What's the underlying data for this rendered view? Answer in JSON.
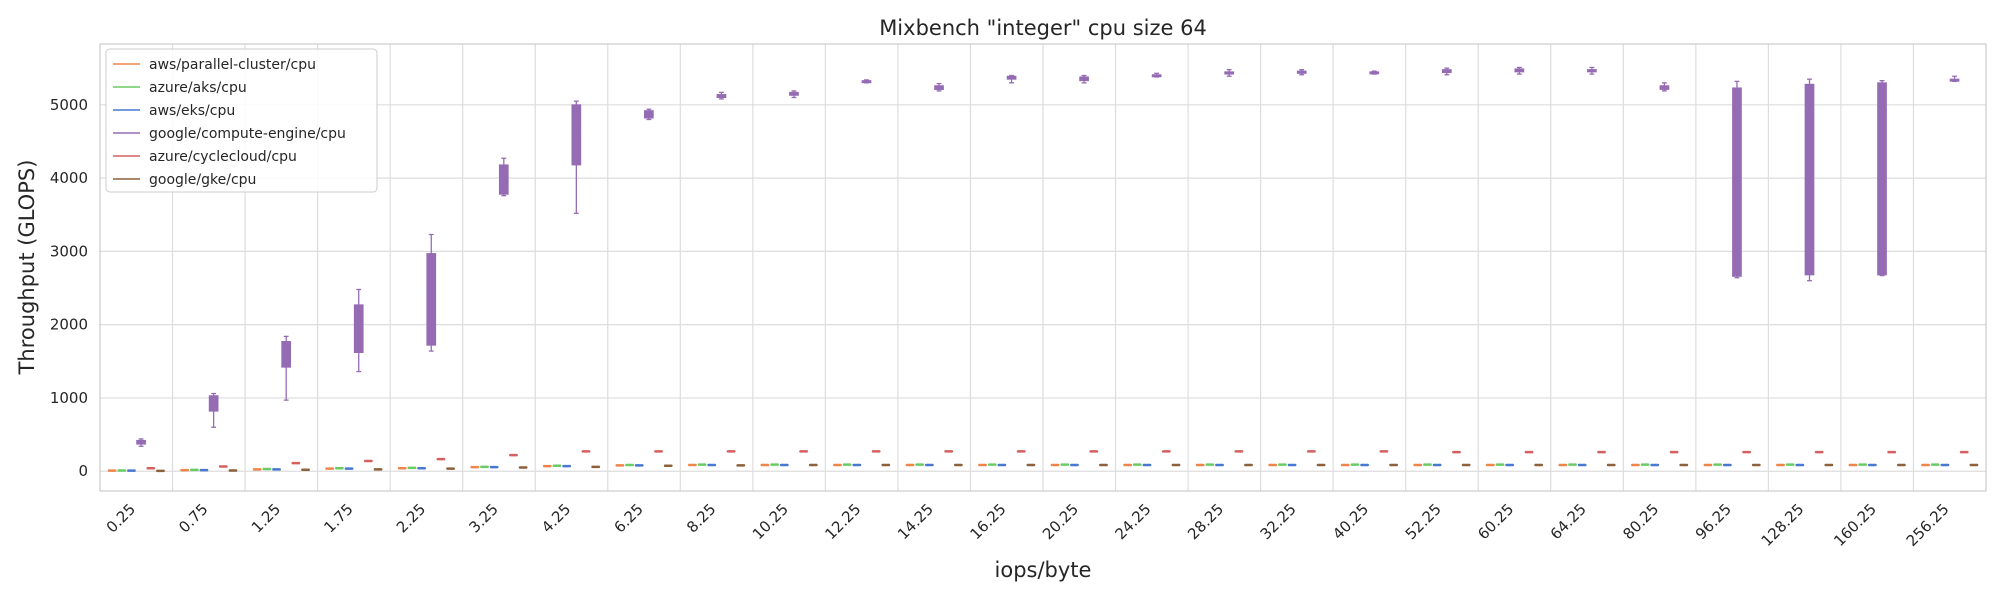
{
  "chart_data": {
    "type": "box",
    "title": "Mixbench \"integer\" cpu size 64",
    "xlabel": "iops/byte",
    "ylabel": "Throughput (GLOPS)",
    "ylim": [
      -270,
      5830
    ],
    "yticks": [
      0,
      1000,
      2000,
      3000,
      4000,
      5000
    ],
    "grid": true,
    "legend_position": "top-left",
    "categories": [
      "0.25",
      "0.75",
      "1.25",
      "1.75",
      "2.25",
      "3.25",
      "4.25",
      "6.25",
      "8.25",
      "10.25",
      "12.25",
      "14.25",
      "16.25",
      "20.25",
      "24.25",
      "28.25",
      "32.25",
      "40.25",
      "52.25",
      "60.25",
      "64.25",
      "80.25",
      "96.25",
      "128.25",
      "160.25",
      "256.25"
    ],
    "series": [
      {
        "name": "aws/parallel-cluster/cpu",
        "color": "#ee854a",
        "median": [
          8,
          15,
          25,
          35,
          40,
          55,
          70,
          80,
          85,
          85,
          85,
          85,
          85,
          85,
          85,
          85,
          85,
          85,
          85,
          85,
          85,
          85,
          85,
          85,
          85,
          85
        ]
      },
      {
        "name": "azure/aks/cpu",
        "color": "#6acc64",
        "median": [
          10,
          18,
          30,
          40,
          45,
          60,
          75,
          85,
          90,
          90,
          90,
          90,
          90,
          90,
          90,
          90,
          90,
          90,
          90,
          90,
          90,
          90,
          90,
          90,
          90,
          90
        ]
      },
      {
        "name": "aws/eks/cpu",
        "color": "#4878d0",
        "median": [
          8,
          15,
          25,
          35,
          40,
          55,
          70,
          80,
          85,
          85,
          85,
          85,
          85,
          85,
          85,
          85,
          85,
          85,
          85,
          85,
          85,
          85,
          85,
          85,
          85,
          85
        ]
      },
      {
        "name": "google/compute-engine/cpu",
        "color": "#956cb4",
        "q1": [
          370,
          820,
          1420,
          1620,
          1720,
          3780,
          4180,
          4820,
          5100,
          5130,
          5310,
          5210,
          5350,
          5330,
          5390,
          5420,
          5430,
          5430,
          5440,
          5450,
          5450,
          5210,
          2660,
          2680,
          2680,
          5330
        ],
        "median": [
          390,
          900,
          1620,
          2050,
          2450,
          4020,
          4650,
          4870,
          5120,
          5150,
          5320,
          5230,
          5370,
          5350,
          5400,
          5430,
          5440,
          5440,
          5460,
          5470,
          5460,
          5230,
          4100,
          4300,
          4400,
          5340
        ],
        "q3": [
          420,
          1030,
          1770,
          2270,
          2970,
          4180,
          5000,
          4920,
          5140,
          5170,
          5330,
          5260,
          5390,
          5380,
          5410,
          5450,
          5460,
          5450,
          5480,
          5490,
          5480,
          5260,
          5230,
          5280,
          5300,
          5350
        ],
        "whisker_low": [
          340,
          600,
          970,
          1360,
          1640,
          3760,
          3520,
          4800,
          5080,
          5100,
          5300,
          5190,
          5300,
          5300,
          5380,
          5390,
          5410,
          5420,
          5410,
          5420,
          5420,
          5190,
          2640,
          2600,
          2670,
          5320
        ],
        "whisker_high": [
          440,
          1060,
          1840,
          2480,
          3230,
          4270,
          5050,
          4940,
          5170,
          5190,
          5340,
          5290,
          5400,
          5400,
          5430,
          5480,
          5480,
          5460,
          5500,
          5510,
          5510,
          5300,
          5320,
          5350,
          5330,
          5390
        ]
      },
      {
        "name": "azure/cyclecloud/cpu",
        "color": "#d65f5f",
        "median": [
          40,
          65,
          110,
          140,
          165,
          220,
          270,
          270,
          270,
          270,
          270,
          270,
          270,
          270,
          270,
          270,
          270,
          270,
          260,
          260,
          260,
          260,
          260,
          260,
          260,
          260
        ]
      },
      {
        "name": "google/gke/cpu",
        "color": "#8c613c",
        "median": [
          5,
          10,
          20,
          25,
          35,
          50,
          60,
          75,
          80,
          85,
          85,
          85,
          85,
          85,
          85,
          85,
          85,
          85,
          85,
          85,
          85,
          85,
          85,
          85,
          85,
          85
        ]
      }
    ]
  }
}
